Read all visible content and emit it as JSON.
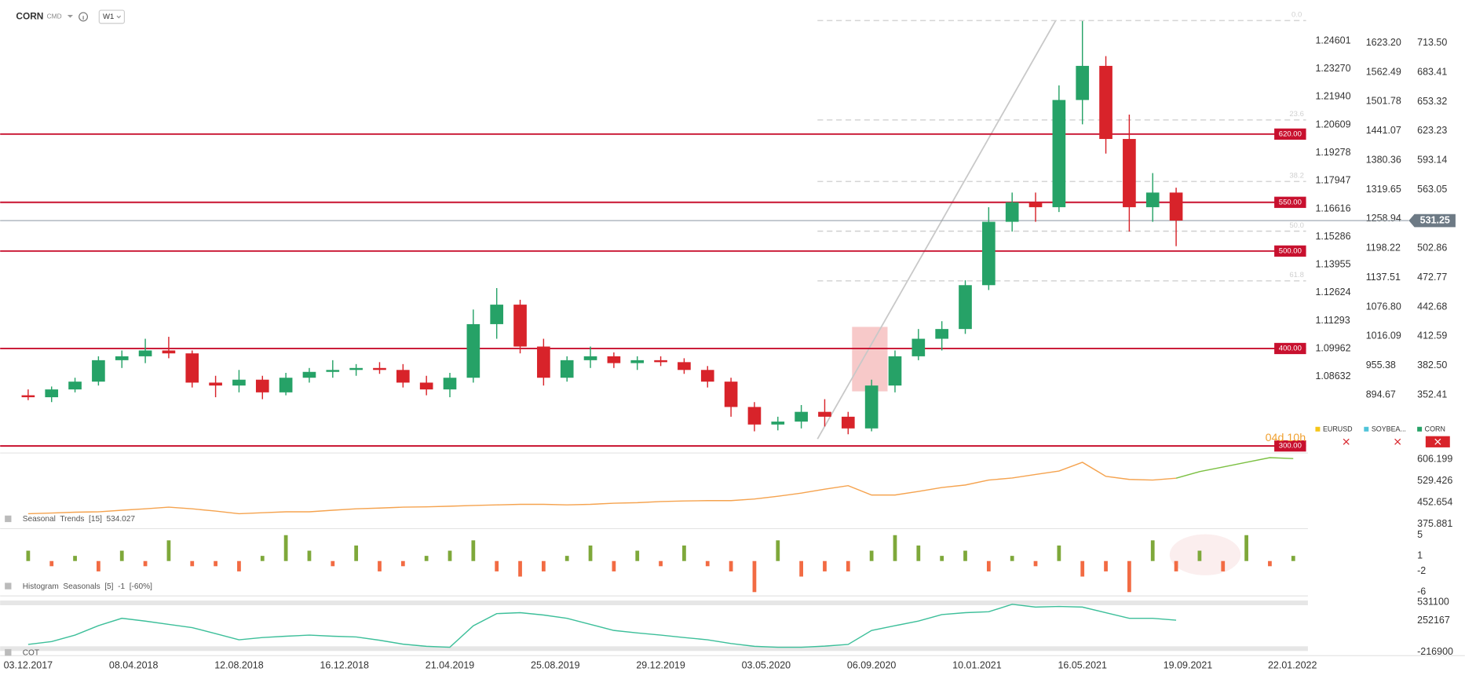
{
  "header": {
    "symbol": "CORN",
    "type": "CMD",
    "timeframe": "W1"
  },
  "chart_data": [
    {
      "type": "candlestick",
      "x": [
        "03.12.2017",
        "31.12.2017",
        "28.01.2018",
        "25.02.2018",
        "25.03.2018",
        "22.04.2018",
        "20.05.2018",
        "17.06.2018",
        "15.07.2018",
        "12.08.2018",
        "09.09.2018",
        "07.10.2018",
        "04.11.2018",
        "02.12.2018",
        "30.12.2018",
        "27.01.2019",
        "24.02.2019",
        "24.03.2019",
        "21.04.2019",
        "19.05.2019",
        "16.06.2019",
        "14.07.2019",
        "11.08.2019",
        "08.09.2019",
        "06.10.2019",
        "03.11.2019",
        "01.12.2019",
        "29.12.2019",
        "26.01.2020",
        "23.02.2020",
        "22.03.2020",
        "19.04.2020",
        "17.05.2020",
        "14.06.2020",
        "12.07.2020",
        "09.08.2020",
        "06.09.2020",
        "04.10.2020",
        "01.11.2020",
        "29.11.2020",
        "27.12.2020",
        "24.01.2021",
        "21.02.2021",
        "21.03.2021",
        "18.04.2021",
        "16.05.2021",
        "13.06.2021",
        "11.07.2021",
        "08.08.2021",
        "05.09.2021"
      ],
      "open": [
        352,
        350,
        358,
        366,
        388,
        392,
        398,
        395,
        365,
        362,
        368,
        355,
        370,
        376,
        378,
        380,
        378,
        365,
        358,
        370,
        425,
        445,
        402,
        370,
        388,
        392,
        385,
        388,
        386,
        378,
        366,
        340,
        322,
        325,
        335,
        330,
        318,
        362,
        392,
        410,
        420,
        465,
        530,
        550,
        545,
        655,
        690,
        615,
        545,
        560
      ],
      "high": [
        358,
        361,
        370,
        392,
        398,
        410,
        412,
        398,
        372,
        378,
        372,
        375,
        380,
        388,
        384,
        386,
        384,
        372,
        375,
        440,
        462,
        450,
        410,
        392,
        402,
        396,
        392,
        392,
        390,
        382,
        370,
        345,
        330,
        342,
        348,
        335,
        368,
        398,
        420,
        428,
        470,
        545,
        560,
        560,
        670,
        736,
        700,
        640,
        580,
        565
      ],
      "low": [
        347,
        345,
        355,
        362,
        380,
        385,
        390,
        360,
        350,
        355,
        348,
        352,
        365,
        370,
        372,
        374,
        360,
        352,
        350,
        365,
        410,
        395,
        362,
        366,
        380,
        380,
        378,
        382,
        374,
        360,
        330,
        315,
        316,
        318,
        320,
        312,
        315,
        355,
        388,
        398,
        415,
        460,
        520,
        530,
        540,
        630,
        600,
        520,
        530,
        505
      ],
      "close": [
        350,
        358,
        366,
        388,
        392,
        398,
        395,
        365,
        362,
        368,
        355,
        370,
        376,
        378,
        380,
        378,
        365,
        358,
        370,
        425,
        445,
        402,
        370,
        388,
        392,
        385,
        388,
        386,
        378,
        366,
        340,
        322,
        325,
        335,
        330,
        318,
        362,
        392,
        410,
        420,
        465,
        530,
        550,
        545,
        655,
        690,
        615,
        545,
        560,
        531.25
      ],
      "up_color": "#26a267",
      "down_color": "#d8232a",
      "ylim": [
        292.8,
        757.6
      ],
      "yticks": [
        {
          "value": 713.5,
          "label": "713.50"
        },
        683.41,
        653.32,
        623.23,
        593.14,
        563.05,
        502.86,
        472.77,
        442.68,
        412.59,
        {
          "value": 382.5,
          "label": "382.50"
        },
        352.41
      ],
      "y2lim": [
        774.4,
        1712.1
      ],
      "y2ticks": [
        {
          "value": 1623.2,
          "label": "1623.20"
        },
        1562.49,
        1501.78,
        1441.07,
        1380.36,
        1319.65,
        1258.94,
        1198.22,
        1137.51,
        {
          "value": 1076.8,
          "label": "1076.80"
        },
        1016.09,
        955.38,
        894.67
      ],
      "y3lim": [
        1.05,
        1.2655
      ],
      "y3ticks": [
        1.24601,
        {
          "value": 1.2327,
          "label": "1.23270"
        },
        {
          "value": 1.2194,
          "label": "1.21940"
        },
        1.20609,
        1.19278,
        1.17947,
        1.16616,
        1.15286,
        1.13955,
        1.12624,
        1.11293,
        1.09962,
        1.08632
      ],
      "xticks": [
        "03.12.2017",
        "08.04.2018",
        "12.08.2018",
        "16.12.2018",
        "21.04.2019",
        "25.08.2019",
        "29.12.2019",
        "03.05.2020",
        "06.09.2020",
        "10.01.2021",
        "16.05.2021",
        "19.09.2021",
        "22.01.2022"
      ],
      "levels": {
        "values": [
          620,
          550,
          500,
          400,
          300
        ],
        "value_labels": [
          "620.00",
          "550.00",
          "500.00",
          "400.00",
          "300.00"
        ],
        "color": "#c8102e"
      },
      "last_price": 531.25,
      "fibonacci": {
        "high": 736.5,
        "low": 304.3,
        "levels": [
          {
            "value": 0,
            "label": "0.0"
          },
          23.6,
          38.2,
          {
            "value": 50,
            "label": "50.0"
          },
          61.8
        ],
        "color": "#d0d0d0"
      },
      "countdown": "04d 10h",
      "legend": [
        {
          "name": "EURUSD",
          "color": "#f5c518"
        },
        {
          "name": "SOYBEA...",
          "color": "#4fc3d9"
        },
        {
          "name": "CORN",
          "color": "#26a267"
        }
      ]
    },
    {
      "type": "line",
      "title": "Seasonal  Trends  [15]  534.027",
      "x": [
        "03.12.2017",
        "31.12.2017",
        "28.01.2018",
        "25.02.2018",
        "25.03.2018",
        "22.04.2018",
        "20.05.2018",
        "17.06.2018",
        "15.07.2018",
        "12.08.2018",
        "09.09.2018",
        "07.10.2018",
        "04.11.2018",
        "02.12.2018",
        "30.12.2018",
        "27.01.2019",
        "24.02.2019",
        "24.03.2019",
        "21.04.2019",
        "19.05.2019",
        "16.06.2019",
        "14.07.2019",
        "11.08.2019",
        "08.09.2019",
        "06.10.2019",
        "03.11.2019",
        "01.12.2019",
        "29.12.2019",
        "26.01.2020",
        "23.02.2020",
        "22.03.2020",
        "19.04.2020",
        "17.05.2020",
        "14.06.2020",
        "12.07.2020",
        "09.08.2020",
        "06.09.2020",
        "04.10.2020",
        "01.11.2020",
        "29.11.2020",
        "27.12.2020",
        "24.01.2021",
        "21.02.2021",
        "21.03.2021",
        "18.04.2021",
        "16.05.2021",
        "13.06.2021",
        "11.07.2021",
        "08.08.2021",
        "05.09.2021",
        "03.10.2021",
        "31.10.2021",
        "28.11.2021",
        "26.12.2021",
        "23.01.2022"
      ],
      "series": [
        {
          "color": "#f5a34f",
          "values": [
            412.6,
            415,
            418,
            419.3,
            425,
            430,
            435.9,
            430,
            422,
            412.6,
            416,
            419.3,
            419.3,
            425,
            430,
            432.6,
            435.9,
            437,
            439.3,
            442,
            444,
            446,
            446,
            444,
            446,
            450,
            452,
            456,
            458,
            459.3,
            459.3,
            465,
            475,
            486,
            500,
            512.7,
            479.4,
            479.4,
            492,
            506.1,
            515,
            532.8,
            540,
            552.8,
            565,
            596.2,
            546.1,
            535,
            532.8,
            539.4,
            null,
            null,
            null,
            null,
            null
          ]
        },
        {
          "color": "#7cc043",
          "values": [
            null,
            null,
            null,
            null,
            null,
            null,
            null,
            null,
            null,
            null,
            null,
            null,
            null,
            null,
            null,
            null,
            null,
            null,
            null,
            null,
            null,
            null,
            null,
            null,
            null,
            null,
            null,
            null,
            null,
            null,
            null,
            null,
            null,
            null,
            null,
            null,
            null,
            null,
            null,
            null,
            null,
            null,
            null,
            null,
            null,
            null,
            null,
            null,
            null,
            539.4,
            562.8,
            579.5,
            596.2,
            612.9,
            609.5
          ]
        }
      ],
      "ylim": [
        362.53,
        622.89
      ],
      "yticks": [
        606.199,
        529.426,
        452.654,
        375.881
      ]
    },
    {
      "type": "bar",
      "title": "Histogram  Seasonals  [5]  -1  [-60%]",
      "x": [
        "03.12.2017",
        "31.12.2017",
        "28.01.2018",
        "25.02.2018",
        "25.03.2018",
        "22.04.2018",
        "20.05.2018",
        "17.06.2018",
        "15.07.2018",
        "12.08.2018",
        "09.09.2018",
        "07.10.2018",
        "04.11.2018",
        "02.12.2018",
        "30.12.2018",
        "27.01.2019",
        "24.02.2019",
        "24.03.2019",
        "21.04.2019",
        "19.05.2019",
        "16.06.2019",
        "14.07.2019",
        "11.08.2019",
        "08.09.2019",
        "06.10.2019",
        "03.11.2019",
        "01.12.2019",
        "29.12.2019",
        "26.01.2020",
        "23.02.2020",
        "22.03.2020",
        "19.04.2020",
        "17.05.2020",
        "14.06.2020",
        "12.07.2020",
        "09.08.2020",
        "06.09.2020",
        "04.10.2020",
        "01.11.2020",
        "29.11.2020",
        "27.12.2020",
        "24.01.2021",
        "21.02.2021",
        "21.03.2021",
        "18.04.2021",
        "16.05.2021",
        "13.06.2021",
        "11.07.2021",
        "08.08.2021",
        "05.09.2021",
        "03.10.2021",
        "31.10.2021",
        "28.11.2021",
        "26.12.2021",
        "23.01.2022"
      ],
      "values": [
        2,
        -1,
        1,
        -2,
        2,
        -1,
        4,
        -1,
        -1,
        -2,
        1,
        5,
        2,
        -1,
        3,
        -2,
        -1,
        1,
        2,
        4,
        -2,
        -3,
        -2,
        1,
        3,
        -2,
        2,
        -1,
        3,
        -1,
        -2,
        -6,
        4,
        -3,
        -2,
        -2,
        2,
        5,
        3,
        1,
        2,
        -2,
        1,
        -1,
        3,
        -3,
        -2,
        -6,
        4,
        -2,
        2,
        -2,
        5,
        -1,
        1
      ],
      "positive_color": "#7ea83a",
      "negative_color": "#f26b43",
      "ylim": [
        -6.55,
        6.08
      ],
      "yticks": [
        5,
        1,
        -2,
        -6
      ]
    },
    {
      "type": "line",
      "title": "COT",
      "x": [
        "03.12.2017",
        "31.12.2017",
        "28.01.2018",
        "25.02.2018",
        "25.03.2018",
        "22.04.2018",
        "20.05.2018",
        "17.06.2018",
        "15.07.2018",
        "12.08.2018",
        "09.09.2018",
        "07.10.2018",
        "04.11.2018",
        "02.12.2018",
        "30.12.2018",
        "27.01.2019",
        "24.02.2019",
        "24.03.2019",
        "21.04.2019",
        "19.05.2019",
        "16.06.2019",
        "14.07.2019",
        "11.08.2019",
        "08.09.2019",
        "06.10.2019",
        "03.11.2019",
        "01.12.2019",
        "29.12.2019",
        "26.01.2020",
        "23.02.2020",
        "22.03.2020",
        "19.04.2020",
        "17.05.2020",
        "14.06.2020",
        "12.07.2020",
        "09.08.2020",
        "06.09.2020",
        "04.10.2020",
        "01.11.2020",
        "29.11.2020",
        "27.12.2020",
        "24.01.2021",
        "21.02.2021",
        "21.03.2021",
        "18.04.2021",
        "16.05.2021",
        "13.06.2021",
        "11.07.2021",
        "08.08.2021",
        "05.09.2021"
      ],
      "series": [
        {
          "color": "#3dbf9a",
          "values": [
            -104000,
            -60000,
            37000,
            180000,
            291000,
            249000,
            200000,
            150000,
            60000,
            -33000,
            0,
            20000,
            37000,
            20000,
            9000,
            -40000,
            -100000,
            -132000,
            -146000,
            178000,
            362000,
            376000,
            340000,
            291000,
            200000,
            108000,
            70000,
            37000,
            0,
            -33000,
            -90000,
            -132000,
            -146000,
            -146000,
            -130000,
            -104000,
            108000,
            180000,
            249000,
            347000,
            376000,
            390000,
            503000,
            461000,
            470000,
            461000,
            376000,
            291000,
            291000,
            263000
          ]
        }
      ],
      "ylim": [
        -245128,
        601670
      ],
      "yticks": [
        531100,
        252167,
        -216900
      ]
    }
  ]
}
